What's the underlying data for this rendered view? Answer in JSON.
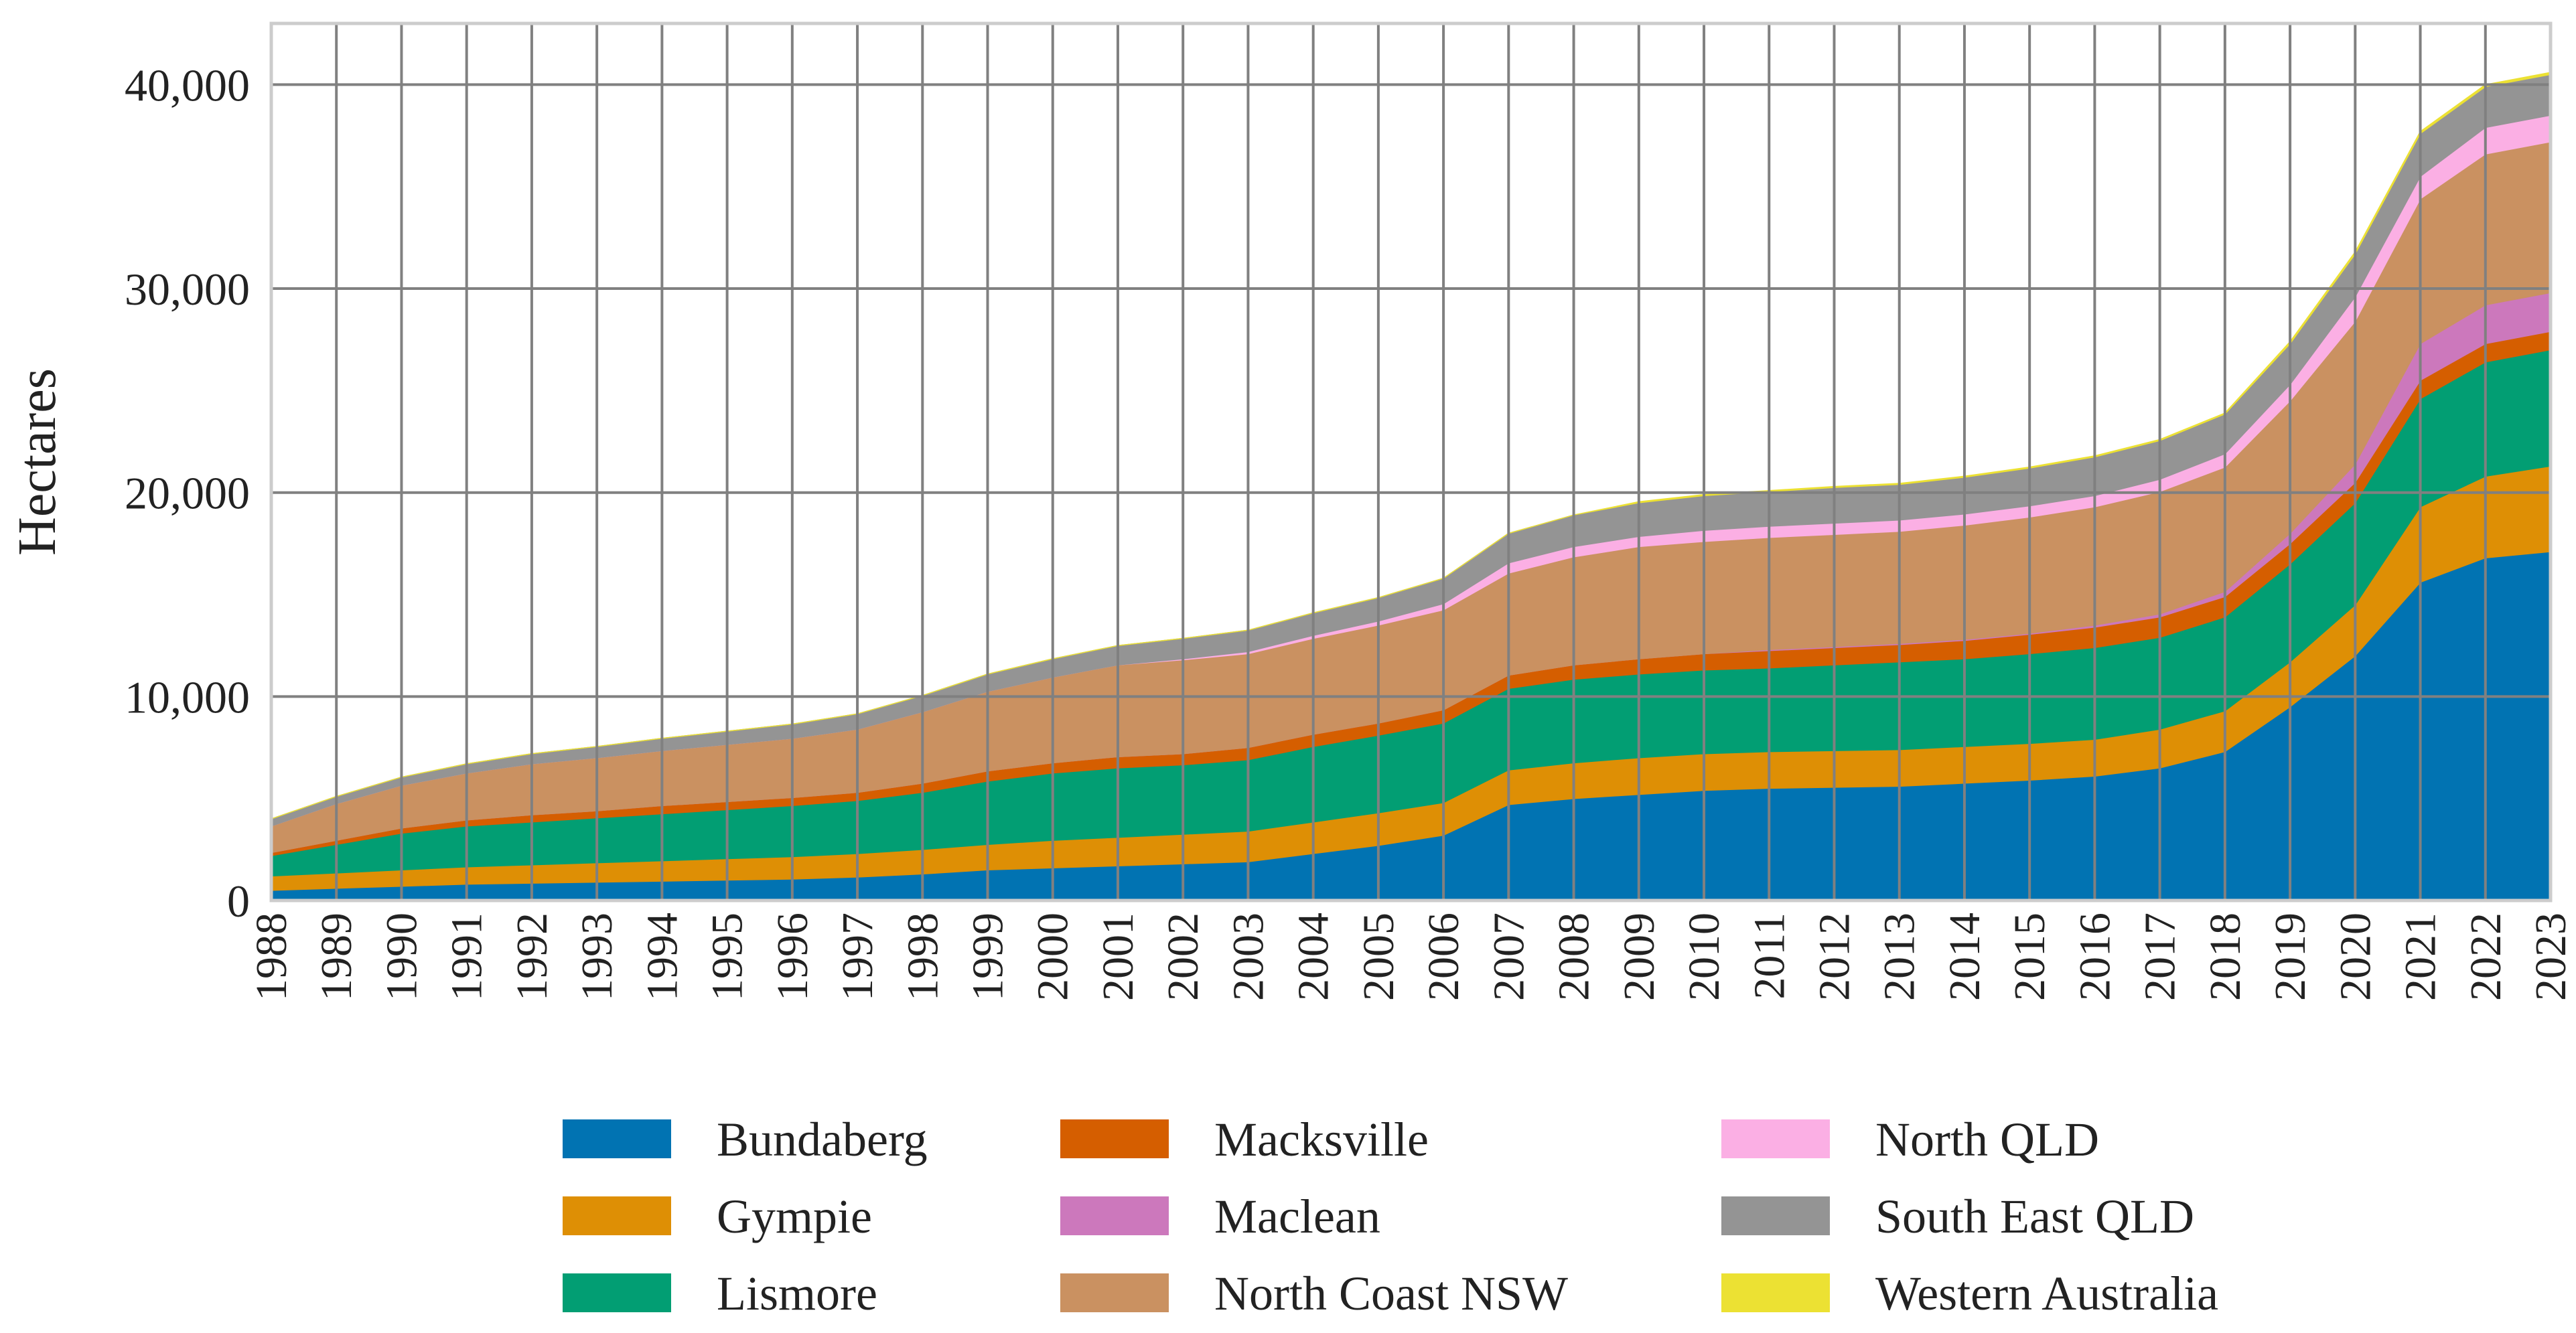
{
  "chart_data": {
    "type": "area",
    "stacked": true,
    "title": "",
    "xlabel": "",
    "ylabel": "Hectares",
    "ylim": [
      0,
      43000
    ],
    "yticks": [
      0,
      10000,
      20000,
      30000,
      40000
    ],
    "ytick_labels": [
      "0",
      "10,000",
      "20,000",
      "30,000",
      "40,000"
    ],
    "grid": true,
    "legend_position": "bottom",
    "x": [
      "1988",
      "1989",
      "1990",
      "1991",
      "1992",
      "1993",
      "1994",
      "1995",
      "1996",
      "1997",
      "1998",
      "1999",
      "2000",
      "2001",
      "2002",
      "2003",
      "2004",
      "2005",
      "2006",
      "2007",
      "2008",
      "2009",
      "2010",
      "2011",
      "2012",
      "2013",
      "2014",
      "2015",
      "2016",
      "2017",
      "2018",
      "2019",
      "2020",
      "2021",
      "2022",
      "2023"
    ],
    "series": [
      {
        "name": "Bundaberg",
        "color": "#0173b2",
        "values": [
          500,
          600,
          700,
          800,
          850,
          900,
          950,
          1000,
          1050,
          1150,
          1300,
          1500,
          1600,
          1700,
          1800,
          1900,
          2300,
          2700,
          3200,
          4700,
          5000,
          5200,
          5400,
          5500,
          5550,
          5600,
          5750,
          5900,
          6100,
          6500,
          7300,
          9500,
          12000,
          15600,
          16800,
          17100
        ]
      },
      {
        "name": "Gympie",
        "color": "#de8f05",
        "values": [
          700,
          750,
          800,
          850,
          900,
          950,
          1000,
          1050,
          1100,
          1150,
          1200,
          1250,
          1350,
          1400,
          1450,
          1500,
          1550,
          1600,
          1600,
          1700,
          1750,
          1800,
          1800,
          1800,
          1800,
          1800,
          1800,
          1800,
          1800,
          1900,
          2000,
          2200,
          2500,
          3700,
          4000,
          4200
        ]
      },
      {
        "name": "Lismore",
        "color": "#029e73",
        "values": [
          1000,
          1400,
          1800,
          2000,
          2100,
          2200,
          2300,
          2400,
          2500,
          2600,
          2800,
          3100,
          3300,
          3400,
          3400,
          3500,
          3700,
          3800,
          3900,
          4000,
          4100,
          4100,
          4100,
          4100,
          4200,
          4300,
          4300,
          4400,
          4500,
          4500,
          4600,
          4800,
          5000,
          5300,
          5600,
          5700
        ]
      },
      {
        "name": "Macksville",
        "color": "#d55e00",
        "values": [
          150,
          200,
          250,
          300,
          350,
          350,
          400,
          400,
          400,
          400,
          450,
          500,
          500,
          550,
          550,
          600,
          600,
          600,
          650,
          650,
          700,
          750,
          800,
          850,
          850,
          850,
          900,
          950,
          1000,
          1000,
          1000,
          1000,
          1000,
          900,
          900,
          900
        ]
      },
      {
        "name": "Maclean",
        "color": "#cc78bc",
        "values": [
          0,
          0,
          0,
          0,
          0,
          0,
          0,
          0,
          0,
          0,
          0,
          0,
          0,
          0,
          0,
          0,
          0,
          0,
          0,
          0,
          0,
          0,
          0,
          50,
          50,
          50,
          50,
          50,
          100,
          150,
          250,
          500,
          900,
          1800,
          1900,
          1900
        ]
      },
      {
        "name": "North Coast NSW",
        "color": "#ca9161",
        "values": [
          1300,
          1800,
          2100,
          2300,
          2500,
          2600,
          2700,
          2800,
          2900,
          3100,
          3500,
          3900,
          4200,
          4500,
          4600,
          4600,
          4700,
          4800,
          4900,
          5000,
          5300,
          5500,
          5500,
          5500,
          5500,
          5500,
          5600,
          5700,
          5800,
          6000,
          6100,
          6500,
          7000,
          7100,
          7400,
          7400
        ]
      },
      {
        "name": "North QLD",
        "color": "#fbafe4",
        "values": [
          0,
          0,
          0,
          0,
          0,
          0,
          0,
          0,
          0,
          0,
          0,
          0,
          0,
          0,
          50,
          100,
          150,
          200,
          300,
          500,
          500,
          500,
          550,
          550,
          550,
          550,
          550,
          550,
          550,
          600,
          650,
          800,
          1200,
          1100,
          1300,
          1300
        ]
      },
      {
        "name": "South East QLD",
        "color": "#949494",
        "values": [
          350,
          350,
          400,
          450,
          500,
          550,
          600,
          650,
          700,
          750,
          800,
          850,
          900,
          950,
          1000,
          1050,
          1100,
          1150,
          1250,
          1450,
          1550,
          1650,
          1700,
          1700,
          1750,
          1750,
          1800,
          1850,
          1900,
          1900,
          1950,
          2000,
          2100,
          2100,
          2000,
          2000
        ]
      },
      {
        "name": "Western Australia",
        "color": "#ece133",
        "values": [
          0,
          0,
          0,
          0,
          0,
          0,
          0,
          0,
          0,
          0,
          0,
          0,
          0,
          0,
          0,
          0,
          0,
          0,
          0,
          0,
          0,
          50,
          50,
          50,
          50,
          50,
          50,
          50,
          50,
          50,
          50,
          100,
          100,
          100,
          100,
          100
        ]
      }
    ]
  }
}
